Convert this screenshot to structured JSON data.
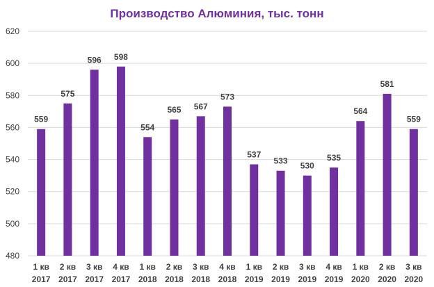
{
  "chart_data": {
    "type": "bar",
    "title": "Производство Алюминия, тыс. тонн",
    "xlabel": "",
    "ylabel": "",
    "ylim": [
      480,
      620
    ],
    "yticks": [
      480,
      500,
      520,
      540,
      560,
      580,
      600,
      620
    ],
    "grid": true,
    "categories": [
      [
        "1 кв",
        "2017"
      ],
      [
        "2 кв",
        "2017"
      ],
      [
        "3 кв",
        "2017"
      ],
      [
        "4 кв",
        "2017"
      ],
      [
        "1 кв",
        "2018"
      ],
      [
        "2 кв",
        "2018"
      ],
      [
        "3 кв",
        "2018"
      ],
      [
        "4 кв",
        "2018"
      ],
      [
        "1 кв",
        "2019"
      ],
      [
        "2 кв",
        "2019"
      ],
      [
        "3 кв",
        "2019"
      ],
      [
        "4 кв",
        "2019"
      ],
      [
        "1 кв",
        "2020"
      ],
      [
        "2 кв",
        "2020"
      ],
      [
        "3 кв",
        "2020"
      ]
    ],
    "values": [
      559,
      575,
      596,
      598,
      554,
      565,
      567,
      573,
      537,
      533,
      530,
      535,
      564,
      581,
      559
    ],
    "data_labels": true
  },
  "colors": {
    "bar": "#7030a0",
    "title": "#7030a0",
    "grid": "#d9d9d9",
    "text": "#404040"
  }
}
